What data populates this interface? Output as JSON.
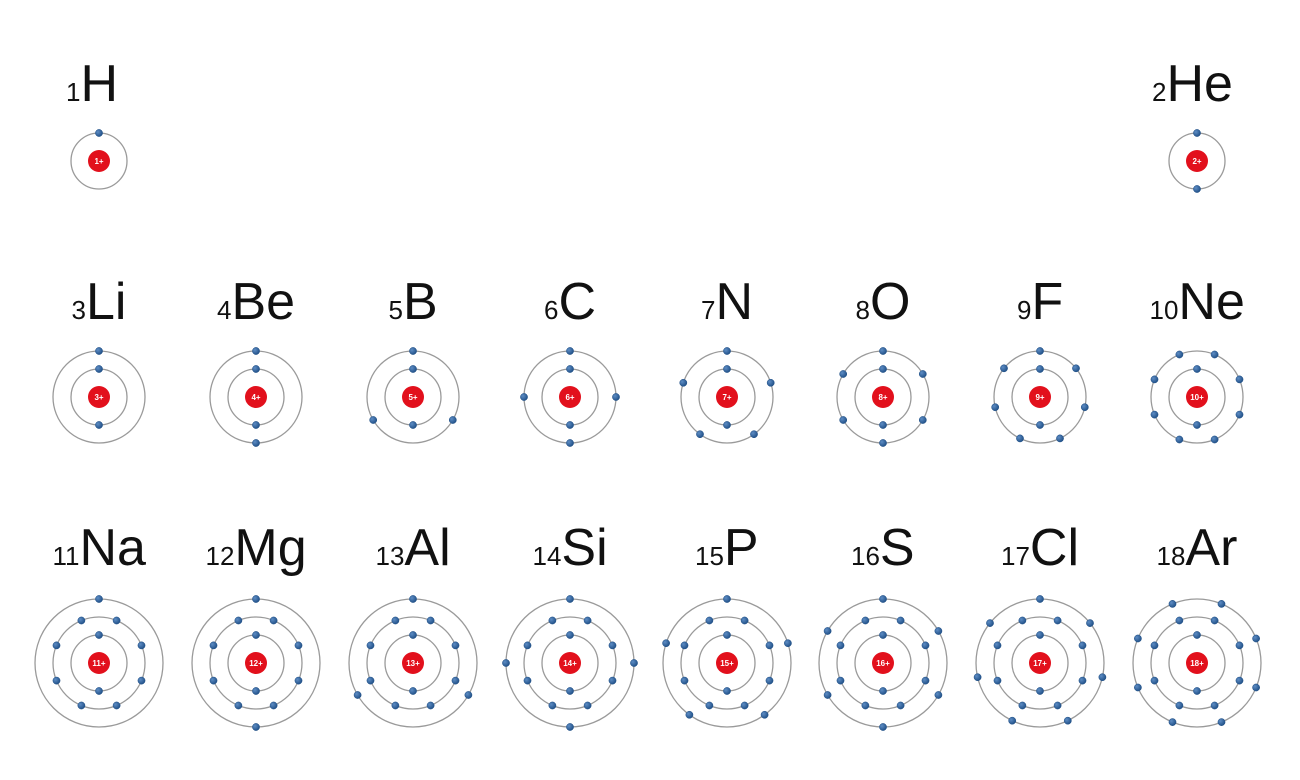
{
  "colors": {
    "nucleus": "#e2101c",
    "nucleus_text": "#ffffff",
    "electron": "#1f4f86",
    "electron_highlight": "#5d8cc4",
    "shell": "#9a9a9a",
    "text": "#111111"
  },
  "elements": [
    {
      "number": "1",
      "symbol": "H",
      "charge": "1+",
      "shells": [
        1
      ]
    },
    {
      "number": "2",
      "symbol": "He",
      "charge": "2+",
      "shells": [
        2
      ]
    },
    {
      "number": "3",
      "symbol": "Li",
      "charge": "3+",
      "shells": [
        2,
        1
      ]
    },
    {
      "number": "4",
      "symbol": "Be",
      "charge": "4+",
      "shells": [
        2,
        2
      ]
    },
    {
      "number": "5",
      "symbol": "B",
      "charge": "5+",
      "shells": [
        2,
        3
      ]
    },
    {
      "number": "6",
      "symbol": "C",
      "charge": "6+",
      "shells": [
        2,
        4
      ]
    },
    {
      "number": "7",
      "symbol": "N",
      "charge": "7+",
      "shells": [
        2,
        5
      ]
    },
    {
      "number": "8",
      "symbol": "O",
      "charge": "8+",
      "shells": [
        2,
        6
      ]
    },
    {
      "number": "9",
      "symbol": "F",
      "charge": "9+",
      "shells": [
        2,
        7
      ]
    },
    {
      "number": "10",
      "symbol": "Ne",
      "charge": "10+",
      "shells": [
        2,
        8
      ]
    },
    {
      "number": "11",
      "symbol": "Na",
      "charge": "11+",
      "shells": [
        2,
        8,
        1
      ]
    },
    {
      "number": "12",
      "symbol": "Mg",
      "charge": "12+",
      "shells": [
        2,
        8,
        2
      ]
    },
    {
      "number": "13",
      "symbol": "Al",
      "charge": "13+",
      "shells": [
        2,
        8,
        3
      ]
    },
    {
      "number": "14",
      "symbol": "Si",
      "charge": "14+",
      "shells": [
        2,
        8,
        4
      ]
    },
    {
      "number": "15",
      "symbol": "P",
      "charge": "15+",
      "shells": [
        2,
        8,
        5
      ]
    },
    {
      "number": "16",
      "symbol": "S",
      "charge": "16+",
      "shells": [
        2,
        8,
        6
      ]
    },
    {
      "number": "17",
      "symbol": "Cl",
      "charge": "17+",
      "shells": [
        2,
        8,
        7
      ]
    },
    {
      "number": "18",
      "symbol": "Ar",
      "charge": "18+",
      "shells": [
        2,
        8,
        8
      ]
    }
  ]
}
